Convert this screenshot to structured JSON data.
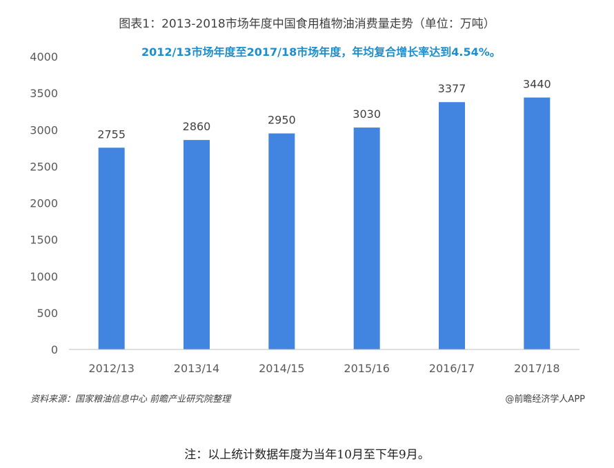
{
  "title": "图表1：2013-2018市场年度中国食用植物油消费量走势（单位：万吨）",
  "annotation": "2012/13市场年度至2017/18市场年度，年均复合增长率达到4.54%。",
  "source": "资料来源：国家粮油信息中心 前瞻产业研究院整理",
  "credit": "@前瞻经济学人APP",
  "note": "注：以上统计数据年度为当年10月至下年9月。",
  "colors": {
    "bar": "#4285e0",
    "axis": "#bfbfbf"
  },
  "chart_data": {
    "type": "bar",
    "categories": [
      "2012/13",
      "2013/14",
      "2014/15",
      "2015/16",
      "2016/17",
      "2017/18"
    ],
    "values": [
      2755,
      2860,
      2950,
      3030,
      3377,
      3440
    ],
    "ylim": [
      0,
      4000
    ],
    "yticks": [
      0,
      500,
      1000,
      1500,
      2000,
      2500,
      3000,
      3500,
      4000
    ],
    "grid": false,
    "legend": "none",
    "data_labels": true
  }
}
